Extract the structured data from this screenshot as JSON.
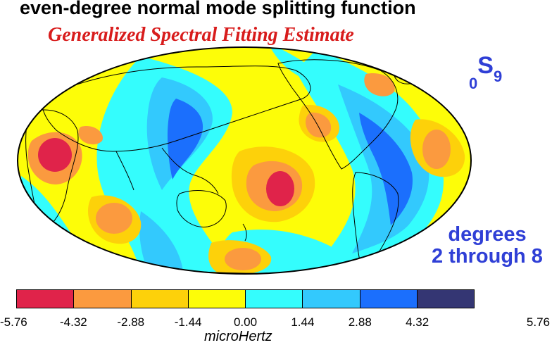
{
  "title": "even-degree normal mode splitting function",
  "subtitle": "Generalized Spectral Fitting Estimate",
  "mode_label": {
    "prefix": "0",
    "main": "S",
    "suffix": "9"
  },
  "degrees_label": [
    "degrees",
    "2 through 8"
  ],
  "colorbar": {
    "colors": [
      "#e0234a",
      "#fb9a3f",
      "#fdd10a",
      "#fdfd08",
      "#34fdfd",
      "#33c9fd",
      "#1b6ffd",
      "#343673"
    ],
    "ticks": [
      "-5.76",
      "-4.32",
      "-2.88",
      "-1.44",
      "0.00",
      "1.44",
      "2.88",
      "4.32",
      "5.76"
    ],
    "unit": "microHertz"
  },
  "map_colors": {
    "background": "#fdfd08",
    "coast": "#000000"
  }
}
